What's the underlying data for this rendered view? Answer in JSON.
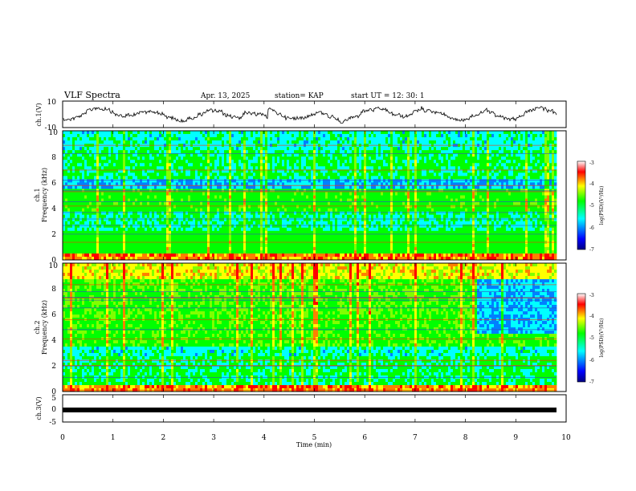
{
  "header": {
    "title": "VLF Spectra",
    "date": "Apr. 13, 2025",
    "station": "station= KAP",
    "start": "start  UT  =   12: 30: 1"
  },
  "chart_data": [
    {
      "type": "line",
      "name": "ch1-waveform",
      "ylabel": "ch.1(V)",
      "ylim": [
        -10,
        10
      ],
      "y_ticks": [
        "10",
        "-10"
      ],
      "xlim": [
        0,
        10
      ]
    },
    {
      "type": "heatmap",
      "name": "ch1-spectrogram",
      "ylabel": "ch.1 Frequency (kHz)",
      "ylim": [
        0,
        10
      ],
      "y_ticks": [
        "0",
        "2",
        "4",
        "6",
        "8",
        "10"
      ],
      "xlim": [
        0,
        10
      ],
      "colorbar": {
        "label": "log(PSD)(V²/Hz)",
        "range": [
          -7,
          -3
        ],
        "ticks": [
          "-3",
          "-4",
          "-5",
          "-6",
          "-7"
        ]
      }
    },
    {
      "type": "heatmap",
      "name": "ch2-spectrogram",
      "ylabel": "ch.2 Frequency (kHz)",
      "ylim": [
        0,
        10
      ],
      "y_ticks": [
        "0",
        "2",
        "4",
        "6",
        "8",
        "10"
      ],
      "xlim": [
        0,
        10
      ],
      "colorbar": {
        "label": "log(PSD)(V²/Hz)",
        "range": [
          -7,
          -3
        ],
        "ticks": [
          "-3",
          "-4",
          "-5",
          "-6",
          "-7"
        ]
      }
    },
    {
      "type": "line",
      "name": "ch3-waveform",
      "ylabel": "ch.3(V)",
      "ylim": [
        -5,
        5
      ],
      "y_ticks": [
        "5",
        "0",
        "-5"
      ],
      "value": 0,
      "xlim": [
        0,
        10
      ]
    }
  ],
  "xaxis": {
    "label": "Time  (min)",
    "ticks": [
      "0",
      "1",
      "2",
      "3",
      "4",
      "5",
      "6",
      "7",
      "8",
      "9",
      "10"
    ]
  },
  "labels": {
    "ch1_v": "ch.1(V)",
    "ch1_freq_a": "ch.1",
    "ch1_freq_b": "Frequency  (kHz)",
    "ch2_freq_a": "ch.2",
    "ch2_freq_b": "Frequency  (kHz)",
    "ch3_v": "ch.3(V)",
    "colorbar1": "log(PSD)(V²/Hz)",
    "colorbar2": "log(PSD)(V²/Hz)"
  },
  "colors": {
    "frame": "#000000",
    "trace": "#000000"
  }
}
